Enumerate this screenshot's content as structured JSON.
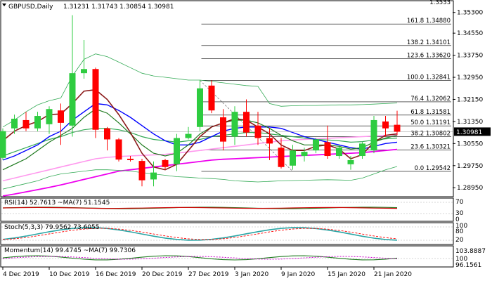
{
  "chart_data": {
    "type": "candlestick",
    "title": "GBPUSD,Daily",
    "ohlc_label": "1.31231 1.31743 1.30854 1.30981",
    "current_price": "1.30981",
    "price_axis": {
      "ylim": [
        1.2865,
        1.357
      ],
      "ticks": [
        "1.35300",
        "1.34550",
        "1.33750",
        "1.32950",
        "1.32150",
        "1.31350",
        "1.30550",
        "1.29750",
        "1.28950"
      ]
    },
    "x_ticks": [
      {
        "label": "4 Dec 2019",
        "index": 0
      },
      {
        "label": "10 Dec 2019",
        "index": 4
      },
      {
        "label": "16 Dec 2019",
        "index": 8
      },
      {
        "label": "20 Dec 2019",
        "index": 12
      },
      {
        "label": "27 Dec 2019",
        "index": 16
      },
      {
        "label": "3 Jan 2020",
        "index": 20
      },
      {
        "label": "9 Jan 2020",
        "index": 24
      },
      {
        "label": "15 Jan 2020",
        "index": 28
      },
      {
        "label": "21 Jan 2020",
        "index": 32
      }
    ],
    "fibonacci": [
      {
        "label": "100.0 1.32841",
        "value": 1.32841
      },
      {
        "label": "76.4 1.32062",
        "value": 1.32062
      },
      {
        "label": "61.8 1.31581",
        "value": 1.31581
      },
      {
        "label": "50.0 1.31191",
        "value": 1.31191
      },
      {
        "label": "38.2 1.30802",
        "value": 1.30802
      },
      {
        "label": "23.6 1.30321",
        "value": 1.30321
      },
      {
        "label": "0.0 1.29542",
        "value": 1.29542
      },
      {
        "label": "123.6 1.33620",
        "value": 1.3362
      },
      {
        "label": "138.2 1.34101",
        "value": 1.34101
      },
      {
        "label": "161.8 1.34880",
        "value": 1.3488
      }
    ],
    "fib_top_partial": "1.3533",
    "candles": [
      {
        "o": 1.3003,
        "h": 1.311,
        "l": 1.2995,
        "c": 1.31
      },
      {
        "o": 1.311,
        "h": 1.316,
        "l": 1.309,
        "c": 1.3145
      },
      {
        "o": 1.314,
        "h": 1.317,
        "l": 1.31,
        "c": 1.311
      },
      {
        "o": 1.311,
        "h": 1.317,
        "l": 1.31,
        "c": 1.3155
      },
      {
        "o": 1.3125,
        "h": 1.319,
        "l": 1.309,
        "c": 1.318
      },
      {
        "o": 1.3175,
        "h": 1.32,
        "l": 1.305,
        "c": 1.313
      },
      {
        "o": 1.312,
        "h": 1.352,
        "l": 1.308,
        "c": 1.331
      },
      {
        "o": 1.331,
        "h": 1.343,
        "l": 1.329,
        "c": 1.3325
      },
      {
        "o": 1.3325,
        "h": 1.333,
        "l": 1.3075,
        "c": 1.3105
      },
      {
        "o": 1.311,
        "h": 1.3115,
        "l": 1.303,
        "c": 1.307
      },
      {
        "o": 1.307,
        "h": 1.3075,
        "l": 1.299,
        "c": 1.2997
      },
      {
        "o": 1.3,
        "h": 1.301,
        "l": 1.299,
        "c": 1.2995
      },
      {
        "o": 1.2992,
        "h": 1.3,
        "l": 1.29,
        "c": 1.2922
      },
      {
        "o": 1.2925,
        "h": 1.299,
        "l": 1.29,
        "c": 1.295
      },
      {
        "o": 1.2995,
        "h": 1.3,
        "l": 1.296,
        "c": 1.297
      },
      {
        "o": 1.298,
        "h": 1.309,
        "l": 1.2955,
        "c": 1.3075
      },
      {
        "o": 1.3075,
        "h": 1.3115,
        "l": 1.307,
        "c": 1.309
      },
      {
        "o": 1.3115,
        "h": 1.3285,
        "l": 1.31,
        "c": 1.3255
      },
      {
        "o": 1.3265,
        "h": 1.3284,
        "l": 1.3165,
        "c": 1.3175
      },
      {
        "o": 1.315,
        "h": 1.318,
        "l": 1.303,
        "c": 1.3062
      },
      {
        "o": 1.308,
        "h": 1.319,
        "l": 1.305,
        "c": 1.317
      },
      {
        "o": 1.317,
        "h": 1.3215,
        "l": 1.308,
        "c": 1.3095
      },
      {
        "o": 1.312,
        "h": 1.317,
        "l": 1.305,
        "c": 1.3075
      },
      {
        "o": 1.3075,
        "h": 1.311,
        "l": 1.2995,
        "c": 1.3055
      },
      {
        "o": 1.304,
        "h": 1.3075,
        "l": 1.2965,
        "c": 1.297
      },
      {
        "o": 1.2975,
        "h": 1.305,
        "l": 1.296,
        "c": 1.303
      },
      {
        "o": 1.301,
        "h": 1.304,
        "l": 1.299,
        "c": 1.3025
      },
      {
        "o": 1.303,
        "h": 1.3075,
        "l": 1.302,
        "c": 1.307
      },
      {
        "o": 1.306,
        "h": 1.312,
        "l": 1.3,
        "c": 1.301
      },
      {
        "o": 1.301,
        "h": 1.305,
        "l": 1.3,
        "c": 1.304
      },
      {
        "o": 1.298,
        "h": 1.301,
        "l": 1.296,
        "c": 1.2995
      },
      {
        "o": 1.301,
        "h": 1.306,
        "l": 1.3,
        "c": 1.3055
      },
      {
        "o": 1.303,
        "h": 1.3155,
        "l": 1.302,
        "c": 1.314
      },
      {
        "o": 1.3135,
        "h": 1.3155,
        "l": 1.308,
        "c": 1.311
      },
      {
        "o": 1.3123,
        "h": 1.3174,
        "l": 1.3085,
        "c": 1.3098
      }
    ],
    "ma_fast": [
      1.3065,
      1.31,
      1.312,
      1.3135,
      1.316,
      1.3162,
      1.32,
      1.3245,
      1.325,
      1.3215,
      1.316,
      1.3095,
      1.302,
      1.297,
      1.296,
      1.298,
      1.303,
      1.308,
      1.3115,
      1.313,
      1.3145,
      1.314,
      1.3115,
      1.309,
      1.305,
      1.303,
      1.303,
      1.3045,
      1.305,
      1.3035,
      1.3,
      1.3015,
      1.306,
      1.3085,
      1.309
    ],
    "ma_mid": [
      1.296,
      1.298,
      1.3,
      1.303,
      1.306,
      1.3085,
      1.311,
      1.315,
      1.318,
      1.3165,
      1.313,
      1.309,
      1.305,
      1.302,
      1.301,
      1.302,
      1.305,
      1.309,
      1.3115,
      1.313,
      1.314,
      1.314,
      1.313,
      1.311,
      1.3085,
      1.3065,
      1.305,
      1.305,
      1.305,
      1.3045,
      1.3035,
      1.304,
      1.306,
      1.3075,
      1.3085
    ],
    "ma_blue": [
      1.2995,
      1.301,
      1.303,
      1.305,
      1.308,
      1.31,
      1.314,
      1.317,
      1.32,
      1.3195,
      1.3175,
      1.315,
      1.312,
      1.309,
      1.3065,
      1.305,
      1.305,
      1.306,
      1.308,
      1.31,
      1.311,
      1.3115,
      1.3115,
      1.3115,
      1.311,
      1.3095,
      1.308,
      1.307,
      1.306,
      1.305,
      1.304,
      1.3035,
      1.3045,
      1.3055,
      1.306
    ],
    "bb_upper": [
      1.3115,
      1.314,
      1.317,
      1.3195,
      1.321,
      1.322,
      1.33,
      1.336,
      1.338,
      1.337,
      1.335,
      1.333,
      1.331,
      1.33,
      1.3295,
      1.329,
      1.3285,
      1.3285,
      1.328,
      1.3275,
      1.327,
      1.3265,
      1.3262,
      1.32,
      1.319,
      1.3192,
      1.3193,
      1.3193,
      1.3194,
      1.3195,
      1.3195,
      1.3196,
      1.3198,
      1.32,
      1.3202
    ],
    "bb_mid": [
      1.301,
      1.3025,
      1.304,
      1.3055,
      1.307,
      1.308,
      1.3095,
      1.3105,
      1.311,
      1.311,
      1.3105,
      1.3095,
      1.308,
      1.307,
      1.3065,
      1.306,
      1.3065,
      1.307,
      1.308,
      1.3085,
      1.309,
      1.3095,
      1.3095,
      1.309,
      1.3085,
      1.308,
      1.3075,
      1.307,
      1.3068,
      1.3065,
      1.306,
      1.3062,
      1.3068,
      1.3072,
      1.3075
    ],
    "bb_lower": [
      1.289,
      1.29,
      1.291,
      1.292,
      1.2935,
      1.2945,
      1.295,
      1.2955,
      1.296,
      1.296,
      1.2958,
      1.2955,
      1.295,
      1.2945,
      1.294,
      1.2935,
      1.2933,
      1.293,
      1.2928,
      1.2925,
      1.292,
      1.2918,
      1.2916,
      1.2918,
      1.292,
      1.2921,
      1.2922,
      1.2923,
      1.2924,
      1.2923,
      1.2922,
      1.293,
      1.2945,
      1.296,
      1.2972
    ],
    "ma_pink": [
      1.292,
      1.293,
      1.294,
      1.295,
      1.296,
      1.297,
      1.298,
      1.299,
      1.3,
      1.3005,
      1.3008,
      1.301,
      1.3012,
      1.3014,
      1.3016,
      1.302,
      1.3025,
      1.303,
      1.3035,
      1.304,
      1.3045,
      1.305,
      1.3055,
      1.306,
      1.3065,
      1.3068,
      1.307,
      1.3072,
      1.3074,
      1.3076,
      1.3078,
      1.308,
      1.3082,
      1.3085,
      1.3087
    ],
    "ma_magenta": [
      1.2865,
      1.2872,
      1.288,
      1.2888,
      1.2896,
      1.2905,
      1.2915,
      1.2925,
      1.2935,
      1.2945,
      1.2955,
      1.296,
      1.2965,
      1.297,
      1.2975,
      1.298,
      1.2985,
      1.299,
      1.2995,
      1.2998,
      1.3,
      1.3002,
      1.3004,
      1.3006,
      1.3008,
      1.301,
      1.3012,
      1.3014,
      1.3016,
      1.3018,
      1.302,
      1.3022,
      1.3026,
      1.303,
      1.3034
    ],
    "indicators": [
      {
        "name": "rsi",
        "label": "RSI(14) 52.7613 ~MA(7) 51.1545",
        "levels": [
          "70",
          "30",
          "0"
        ]
      },
      {
        "name": "stoch",
        "label": "Stoch(5,3,3) 79.9562 73.6055",
        "levels": [
          "100",
          "80",
          "20"
        ]
      },
      {
        "name": "momentum",
        "label": "Momentum(14) 99.4745 ~MA(7) 99.7306",
        "levels": [
          "103.8887",
          "100",
          "96.1561"
        ]
      }
    ]
  },
  "colors": {
    "up": "#2ecc40",
    "down": "#ff0000",
    "ma_fast": "#8b1a1a",
    "ma_mid": "#1f7a1f",
    "ma_blue": "#0000ff",
    "bb": "#33aa55",
    "pink": "#ff99ee",
    "magenta": "#ee00ee",
    "stoch_main": "#2aa5a5",
    "signal": "#ff0000"
  }
}
